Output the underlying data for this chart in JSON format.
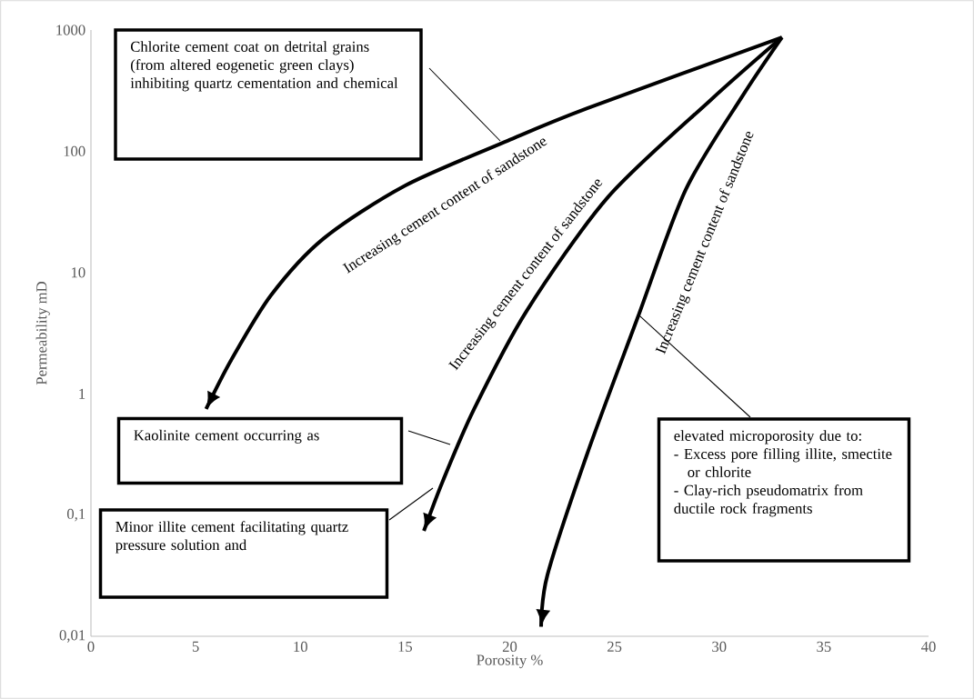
{
  "chart_data": {
    "type": "line",
    "xlabel": "Porosity %",
    "ylabel": "Permeability mD",
    "x": [
      33,
      23.7,
      19.9,
      15.0,
      11.1,
      8.6,
      6.7,
      5.5
    ],
    "series": [
      {
        "color": "#000000",
        "values": [
          870,
          226,
          122,
          52,
          19,
          6.5,
          1.9,
          0.75
        ]
      },
      {
        "color": "#000000",
        "x": [
          33,
          29.6,
          24.7,
          20.8,
          18.3,
          16.8,
          15.9
        ],
        "values": [
          870,
          265,
          42,
          4.8,
          0.75,
          0.19,
          0.074
        ]
      },
      {
        "color": "#000000",
        "x": [
          33,
          31.1,
          28.4,
          26.1,
          23.7,
          21.8,
          21.5
        ],
        "values": [
          870,
          283,
          48,
          4.2,
          0.32,
          0.032,
          0.012
        ]
      }
    ],
    "xlim": [
      0,
      40
    ],
    "xticks": [
      0,
      5,
      10,
      15,
      20,
      25,
      30,
      35,
      40
    ],
    "ylim": [
      0.01,
      1000
    ],
    "yticks": [
      {
        "value": 0.01,
        "label": "0,01"
      },
      {
        "value": 0.1,
        "label": "0,1"
      },
      1,
      10,
      100,
      1000
    ],
    "log": "y",
    "marker": "none",
    "line_style": "solid",
    "annotations": [
      "Chlorite cement coat on detrital grains (from altered eogenetic green clays) inhibiting quartz cementation and chemical",
      "Kaolinite cement occurring as",
      "Minor illite cement facilitating quartz pressure solution and",
      {
        "text": "elevated microporosity due to:",
        "x": 26.2,
        "y": 4.4
      },
      "- Excess pore filling illite, smectite or chlorite",
      "- Clay-rich pseudomatrix from ductile rock fragments",
      "Increasing cement content of sandstone",
      "Increasing cement content of sandstone",
      "Increasing cement content of sandstone"
    ]
  }
}
